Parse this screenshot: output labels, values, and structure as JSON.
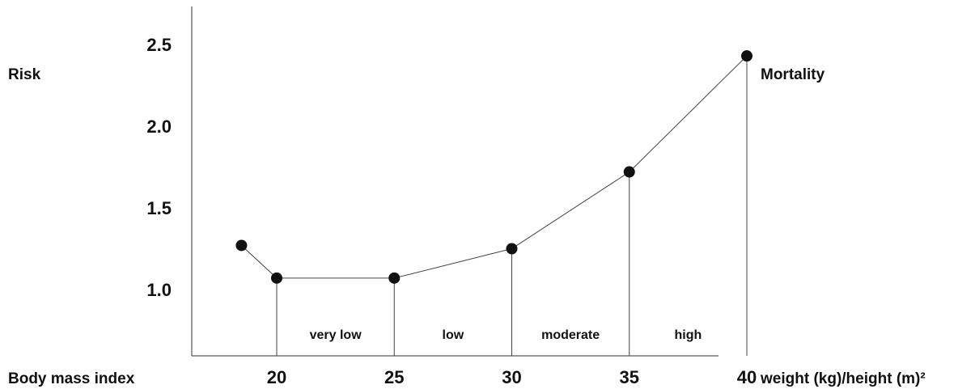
{
  "chart_data": {
    "type": "line",
    "title": "",
    "ylabel": "Risk",
    "y2label": "Mortality",
    "xlabel": "Body mass index",
    "xunit_label": "weight (kg)/height (m)²",
    "x_ticks": [
      "20",
      "25",
      "30",
      "35",
      "40"
    ],
    "y_ticks": [
      "1.0",
      "1.5",
      "2.0",
      "2.5"
    ],
    "xlim": [
      15,
      40
    ],
    "ylim": [
      0.6,
      2.8
    ],
    "series": [
      {
        "x": [
          18.5,
          20,
          25,
          30,
          35,
          40
        ],
        "y": [
          1.27,
          1.07,
          1.07,
          1.25,
          1.72,
          2.43
        ]
      }
    ],
    "drop_lines_x": [
      20,
      25,
      30,
      35,
      40
    ],
    "zones": [
      {
        "label": "very low",
        "from": 20,
        "to": 25
      },
      {
        "label": "low",
        "from": 25,
        "to": 30
      },
      {
        "label": "moderate",
        "from": 30,
        "to": 35
      },
      {
        "label": "high",
        "from": 35,
        "to": 40
      }
    ],
    "grid": false,
    "legend": "none"
  }
}
